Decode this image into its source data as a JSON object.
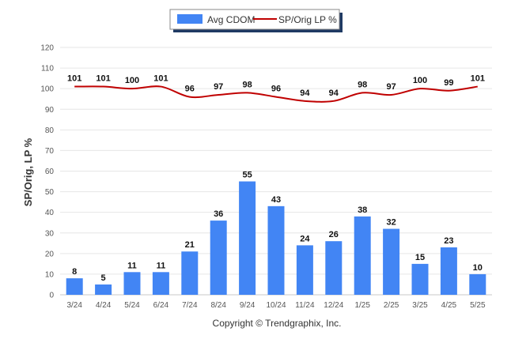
{
  "chart_data": {
    "type": "bar",
    "categories": [
      "3/24",
      "4/24",
      "5/24",
      "6/24",
      "7/24",
      "8/24",
      "9/24",
      "10/24",
      "11/24",
      "12/24",
      "1/25",
      "2/25",
      "3/25",
      "4/25",
      "5/25"
    ],
    "series": [
      {
        "name": "Avg CDOM",
        "type": "bar",
        "color": "#4285f4",
        "values": [
          8,
          5,
          11,
          11,
          21,
          36,
          55,
          43,
          24,
          26,
          38,
          32,
          15,
          23,
          10
        ]
      },
      {
        "name": "SP/Orig LP %",
        "type": "line",
        "color": "#c00000",
        "values": [
          101,
          101,
          100,
          101,
          96,
          97,
          98,
          96,
          94,
          94,
          98,
          97,
          100,
          99,
          101
        ]
      }
    ],
    "ylabel": "SP/Orig, LP %",
    "ylim": [
      0,
      120
    ],
    "yticks": [
      0,
      10,
      20,
      30,
      40,
      50,
      60,
      70,
      80,
      90,
      100,
      110,
      120
    ],
    "grid": true,
    "legend_position": "top-center"
  },
  "footer": {
    "copyright": "Copyright © Trendgraphix, Inc."
  }
}
